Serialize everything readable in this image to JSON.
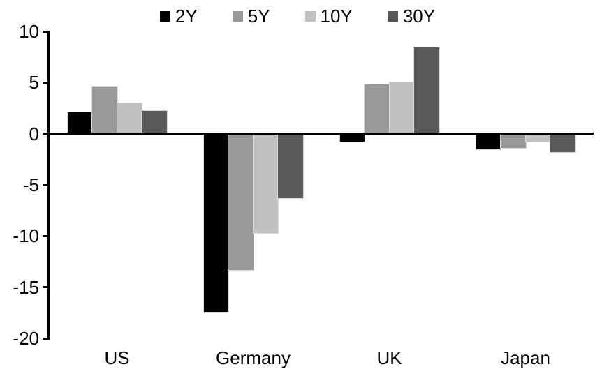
{
  "chart_data": {
    "type": "bar",
    "title": "",
    "categories": [
      "US",
      "Germany",
      "UK",
      "Japan"
    ],
    "series": [
      {
        "name": "2Y",
        "color": "#000000",
        "values": [
          2.1,
          -17.4,
          -0.8,
          -1.5
        ]
      },
      {
        "name": "5Y",
        "color": "#999999",
        "values": [
          4.6,
          -13.3,
          4.8,
          -1.4
        ]
      },
      {
        "name": "10Y",
        "color": "#c1c1c1",
        "values": [
          3.0,
          -9.7,
          5.0,
          -0.8
        ]
      },
      {
        "name": "30Y",
        "color": "#595959",
        "values": [
          2.2,
          -6.3,
          8.4,
          -1.8
        ]
      }
    ],
    "y_axis": {
      "min": -20,
      "max": 10,
      "tick_step": 5,
      "ticks": [
        10,
        5,
        0,
        -5,
        -10,
        -15,
        -20
      ]
    },
    "legend_position": "top",
    "grid": false,
    "axis_color": "#000000",
    "bar_outline_color": "#d9d9d9",
    "background_color": "#ffffff"
  }
}
